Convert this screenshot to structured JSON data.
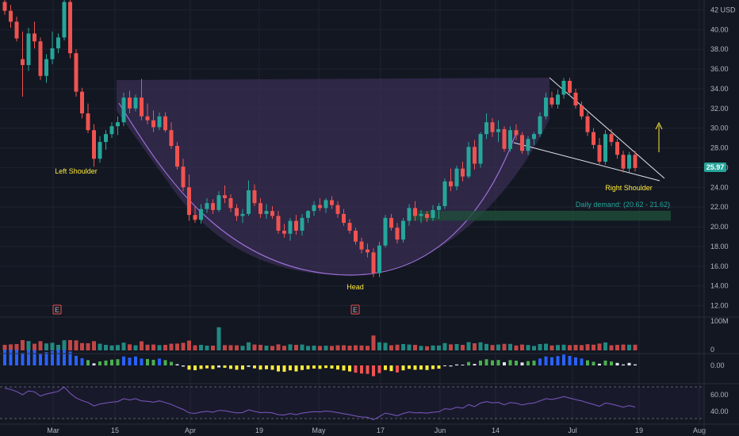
{
  "colors": {
    "background": "#131722",
    "grid": "#1f2330",
    "up": "#26a69a",
    "down": "#ef5350",
    "cup_fill": "#3a2f55",
    "cup_line": "#9c6fd6",
    "wedge": "#e0e3eb",
    "annotation": "#ffeb3b",
    "demand_zone": "#1f4d3a",
    "rsi_line": "#7e57c2",
    "price_tag": "#26a69a"
  },
  "chart_data": {
    "type": "candlestick",
    "currency_label": "USD",
    "price_axis": {
      "ticks": [
        "42",
        "40.00",
        "38.00",
        "36.00",
        "34.00",
        "32.00",
        "30.00",
        "28.00",
        "26.00",
        "24.00",
        "22.00",
        "20.00",
        "18.00",
        "16.00",
        "14.00",
        "12.00"
      ],
      "ylim": [
        11,
        43
      ]
    },
    "x_axis_ticks": [
      "Mar",
      "15",
      "Apr",
      "19",
      "May",
      "17",
      "Jun",
      "14",
      "Jul",
      "19",
      "Aug"
    ],
    "last_price": "25.97",
    "candles": [
      [
        42.8,
        43.5,
        41.5,
        41.9
      ],
      [
        41.9,
        42.5,
        40.2,
        40.8
      ],
      [
        40.8,
        41.3,
        38.8,
        39.1
      ],
      [
        37.0,
        39.8,
        33.2,
        36.4
      ],
      [
        36.4,
        40.2,
        35.8,
        39.6
      ],
      [
        39.6,
        40.8,
        38.1,
        38.8
      ],
      [
        38.8,
        39.2,
        34.9,
        35.3
      ],
      [
        35.3,
        37.5,
        34.6,
        37.0
      ],
      [
        37.0,
        39.8,
        36.5,
        38.1
      ],
      [
        38.1,
        39.6,
        37.6,
        39.2
      ],
      [
        39.2,
        43.8,
        38.9,
        42.8
      ],
      [
        42.8,
        43.5,
        37.1,
        37.6
      ],
      [
        37.6,
        38.0,
        33.2,
        33.7
      ],
      [
        33.7,
        34.1,
        31.0,
        31.5
      ],
      [
        31.5,
        32.5,
        29.5,
        29.8
      ],
      [
        29.8,
        30.4,
        26.1,
        26.9
      ],
      [
        26.9,
        29.2,
        26.5,
        28.6
      ],
      [
        28.6,
        29.8,
        27.8,
        29.4
      ],
      [
        29.4,
        30.6,
        29.0,
        30.2
      ],
      [
        30.2,
        31.2,
        29.3,
        30.6
      ],
      [
        30.6,
        33.6,
        30.2,
        33.1
      ],
      [
        33.1,
        33.8,
        31.5,
        32.0
      ],
      [
        32.0,
        33.4,
        31.7,
        33.1
      ],
      [
        33.1,
        35.0,
        30.8,
        31.2
      ],
      [
        31.2,
        32.5,
        30.4,
        30.8
      ],
      [
        30.8,
        31.8,
        29.6,
        30.1
      ],
      [
        30.1,
        31.6,
        29.8,
        31.2
      ],
      [
        31.2,
        31.6,
        29.6,
        29.8
      ],
      [
        29.8,
        30.6,
        27.9,
        28.2
      ],
      [
        28.2,
        28.6,
        25.8,
        26.1
      ],
      [
        26.1,
        26.9,
        23.6,
        24.0
      ],
      [
        24.0,
        25.3,
        20.6,
        21.2
      ],
      [
        21.2,
        22.1,
        20.4,
        20.7
      ],
      [
        20.7,
        22.3,
        20.3,
        21.8
      ],
      [
        21.8,
        22.9,
        21.4,
        22.4
      ],
      [
        22.4,
        22.8,
        21.3,
        21.7
      ],
      [
        21.7,
        23.6,
        21.5,
        23.2
      ],
      [
        23.2,
        24.2,
        22.4,
        22.9
      ],
      [
        22.9,
        23.3,
        21.5,
        21.9
      ],
      [
        21.9,
        22.3,
        20.6,
        21.1
      ],
      [
        21.1,
        21.8,
        20.4,
        21.3
      ],
      [
        21.3,
        24.7,
        21.1,
        23.7
      ],
      [
        23.7,
        24.3,
        22.1,
        22.4
      ],
      [
        22.4,
        22.9,
        20.9,
        21.3
      ],
      [
        21.3,
        22.3,
        20.8,
        21.6
      ],
      [
        21.6,
        22.1,
        20.8,
        21.1
      ],
      [
        21.1,
        21.6,
        19.3,
        19.6
      ],
      [
        19.6,
        20.3,
        18.9,
        19.3
      ],
      [
        19.3,
        20.9,
        18.6,
        20.6
      ],
      [
        20.6,
        21.2,
        19.2,
        19.6
      ],
      [
        19.6,
        21.3,
        19.1,
        20.9
      ],
      [
        20.9,
        21.7,
        20.4,
        21.6
      ],
      [
        21.6,
        22.6,
        21.1,
        22.2
      ],
      [
        22.2,
        22.9,
        21.6,
        21.9
      ],
      [
        21.9,
        22.9,
        21.4,
        22.7
      ],
      [
        22.7,
        23.1,
        21.8,
        22.2
      ],
      [
        22.2,
        22.6,
        20.9,
        21.3
      ],
      [
        21.3,
        21.8,
        20.1,
        20.4
      ],
      [
        20.4,
        20.8,
        19.3,
        19.6
      ],
      [
        19.6,
        19.9,
        18.2,
        18.5
      ],
      [
        18.5,
        18.9,
        17.3,
        17.7
      ],
      [
        17.7,
        18.3,
        16.9,
        17.4
      ],
      [
        17.4,
        17.8,
        14.9,
        15.3
      ],
      [
        15.3,
        18.5,
        14.9,
        18.1
      ],
      [
        18.1,
        21.2,
        17.9,
        20.9
      ],
      [
        20.9,
        21.3,
        19.6,
        19.9
      ],
      [
        19.9,
        20.4,
        18.3,
        18.7
      ],
      [
        18.7,
        20.9,
        18.4,
        20.6
      ],
      [
        20.6,
        22.3,
        20.1,
        21.9
      ],
      [
        21.9,
        22.6,
        20.6,
        21.1
      ],
      [
        21.1,
        21.7,
        20.4,
        21.3
      ],
      [
        21.3,
        21.6,
        20.5,
        20.9
      ],
      [
        20.9,
        22.2,
        20.6,
        21.7
      ],
      [
        21.7,
        22.4,
        20.8,
        22.1
      ],
      [
        22.1,
        24.9,
        21.8,
        24.6
      ],
      [
        24.6,
        25.9,
        23.6,
        24.1
      ],
      [
        24.1,
        26.2,
        23.7,
        25.9
      ],
      [
        25.9,
        26.6,
        24.6,
        25.1
      ],
      [
        25.1,
        28.6,
        24.9,
        28.1
      ],
      [
        28.1,
        28.8,
        25.8,
        26.4
      ],
      [
        26.4,
        29.6,
        26.0,
        29.4
      ],
      [
        29.4,
        31.5,
        28.9,
        30.6
      ],
      [
        30.6,
        31.0,
        29.1,
        29.6
      ],
      [
        29.6,
        30.8,
        28.6,
        29.9
      ],
      [
        29.9,
        30.2,
        27.6,
        27.9
      ],
      [
        27.9,
        30.2,
        27.6,
        29.8
      ],
      [
        29.8,
        30.4,
        28.8,
        29.3
      ],
      [
        29.3,
        29.6,
        27.4,
        27.7
      ],
      [
        27.7,
        29.2,
        27.3,
        28.9
      ],
      [
        28.9,
        29.6,
        28.3,
        29.4
      ],
      [
        29.4,
        31.6,
        29.1,
        31.2
      ],
      [
        31.2,
        33.6,
        30.9,
        33.1
      ],
      [
        33.1,
        33.7,
        32.1,
        32.4
      ],
      [
        32.4,
        33.9,
        32.0,
        33.4
      ],
      [
        33.4,
        35.1,
        33.0,
        34.8
      ],
      [
        34.8,
        35.1,
        33.3,
        33.6
      ],
      [
        33.6,
        34.0,
        32.0,
        32.3
      ],
      [
        32.3,
        32.7,
        30.9,
        31.2
      ],
      [
        31.2,
        31.6,
        29.2,
        29.6
      ],
      [
        29.6,
        30.0,
        27.9,
        28.3
      ],
      [
        28.3,
        29.0,
        26.2,
        26.6
      ],
      [
        26.6,
        29.8,
        26.3,
        29.4
      ],
      [
        29.4,
        29.9,
        28.2,
        28.6
      ],
      [
        28.6,
        28.9,
        26.9,
        27.3
      ],
      [
        27.3,
        27.7,
        25.5,
        25.9
      ],
      [
        25.9,
        27.6,
        25.5,
        27.3
      ],
      [
        27.3,
        27.7,
        25.6,
        25.97
      ]
    ],
    "annotations": {
      "left_shoulder": "Left Shoulder",
      "head": "Head",
      "right_shoulder": "Right Shoulder",
      "daily_demand": "Daily demand: (20.62 - 21.62)"
    },
    "volume_axis": {
      "ticks": [
        "100M",
        "0"
      ]
    },
    "oscillator_axis": {
      "ticks": [
        "0.00"
      ]
    },
    "rsi_axis": {
      "ticks": [
        "60.00",
        "40.00"
      ]
    },
    "earnings_marker": "E"
  }
}
